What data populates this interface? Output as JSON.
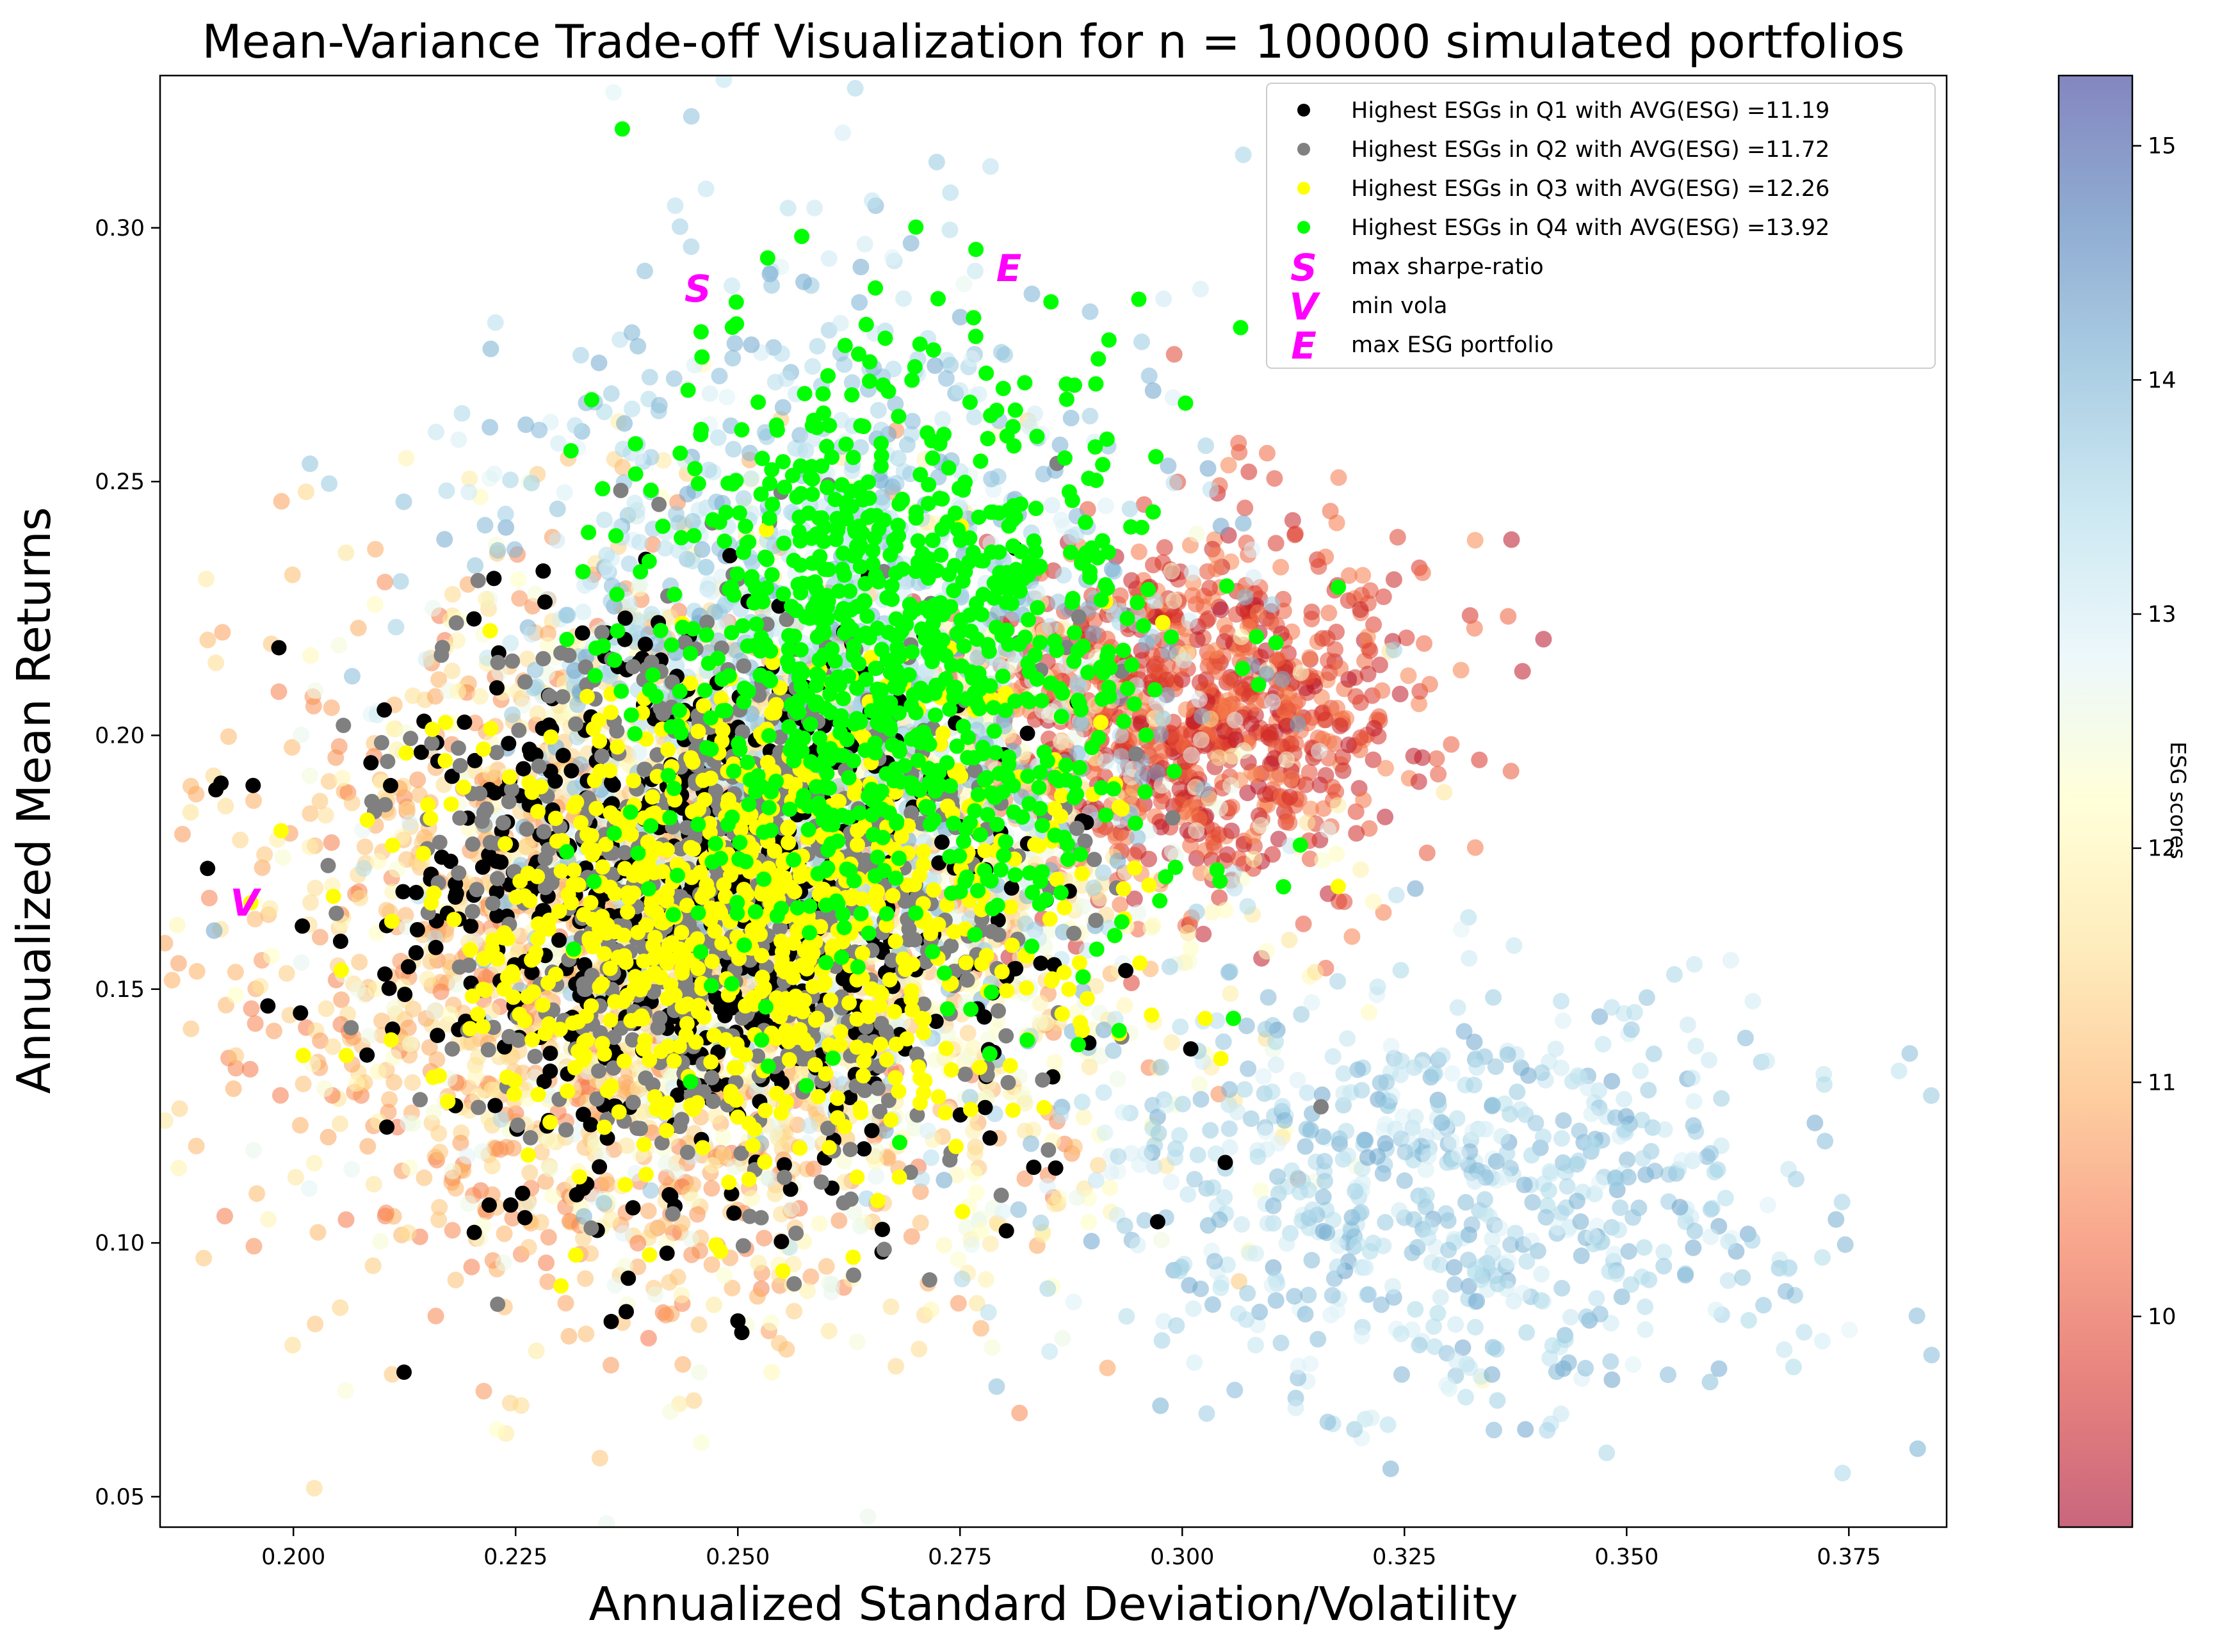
{
  "chart_data": {
    "type": "scatter",
    "title": "Mean-Variance Trade-off Visualization for n = 100000 simulated portfolios",
    "xlabel": "Annualized Standard Deviation/Volatility",
    "ylabel": "Annualized Mean Returns",
    "xlim": [
      0.185,
      0.386
    ],
    "ylim": [
      0.044,
      0.33
    ],
    "xticks": [
      "0.200",
      "0.225",
      "0.250",
      "0.275",
      "0.300",
      "0.325",
      "0.350",
      "0.375"
    ],
    "xtick_values": [
      0.2,
      0.225,
      0.25,
      0.275,
      0.3,
      0.325,
      0.35,
      0.375
    ],
    "yticks": [
      "0.05",
      "0.10",
      "0.15",
      "0.20",
      "0.25",
      "0.30"
    ],
    "ytick_values": [
      0.05,
      0.1,
      0.15,
      0.2,
      0.25,
      0.3
    ],
    "colorbar": {
      "label": "ESG scores",
      "range": [
        9.1,
        15.3
      ],
      "ticks": [
        "10",
        "11",
        "12",
        "13",
        "14",
        "15"
      ],
      "tick_values": [
        10,
        11,
        12,
        13,
        14,
        15
      ],
      "colormap": "RdYlBu",
      "colors": [
        "#a50026",
        "#d73027",
        "#f46d43",
        "#fdae61",
        "#fee090",
        "#ffffbf",
        "#e0f3f8",
        "#abd9e9",
        "#74add1",
        "#4575b4",
        "#313695"
      ]
    },
    "background_cloud": {
      "count": 100000,
      "clusters": [
        {
          "esg_range": [
            9.3,
            10.6
          ],
          "center": [
            0.302,
            0.205
          ],
          "spread": [
            0.012,
            0.018
          ]
        },
        {
          "esg_range": [
            10.4,
            11.6
          ],
          "center": [
            0.24,
            0.155
          ],
          "spread": [
            0.022,
            0.035
          ]
        },
        {
          "esg_range": [
            11.6,
            12.8
          ],
          "center": [
            0.255,
            0.165
          ],
          "spread": [
            0.025,
            0.035
          ]
        },
        {
          "esg_range": [
            12.8,
            14.2
          ],
          "center": [
            0.26,
            0.21
          ],
          "spread": [
            0.02,
            0.04
          ]
        },
        {
          "esg_range": [
            12.8,
            14.2
          ],
          "center": [
            0.33,
            0.11
          ],
          "spread": [
            0.02,
            0.02
          ]
        }
      ]
    },
    "series": [
      {
        "name": "Highest ESGs in Q1 with AVG(ESG) =11.19",
        "color": "#000000",
        "center": [
          0.245,
          0.165
        ],
        "spread": [
          0.018,
          0.028
        ]
      },
      {
        "name": "Highest ESGs in Q2 with AVG(ESG) =11.72",
        "color": "#808080",
        "center": [
          0.248,
          0.17
        ],
        "spread": [
          0.018,
          0.028
        ]
      },
      {
        "name": "Highest ESGs in Q3 with AVG(ESG) =12.26",
        "color": "#ffff00",
        "center": [
          0.25,
          0.165
        ],
        "spread": [
          0.018,
          0.025
        ]
      },
      {
        "name": "Highest ESGs in Q4 with AVG(ESG) =13.92",
        "color": "#00ff00",
        "center": [
          0.268,
          0.215
        ],
        "spread": [
          0.015,
          0.03
        ]
      }
    ],
    "special_points": [
      {
        "name": "max sharpe-ratio",
        "symbol": "S",
        "x": 0.2455,
        "y": 0.288,
        "color": "#ff00ff"
      },
      {
        "name": "min vola",
        "symbol": "V",
        "x": 0.1945,
        "y": 0.167,
        "color": "#ff00ff"
      },
      {
        "name": "max ESG portfolio",
        "symbol": "E",
        "x": 0.2805,
        "y": 0.292,
        "color": "#ff00ff"
      }
    ],
    "legend_position": "upper right",
    "grid": false
  }
}
